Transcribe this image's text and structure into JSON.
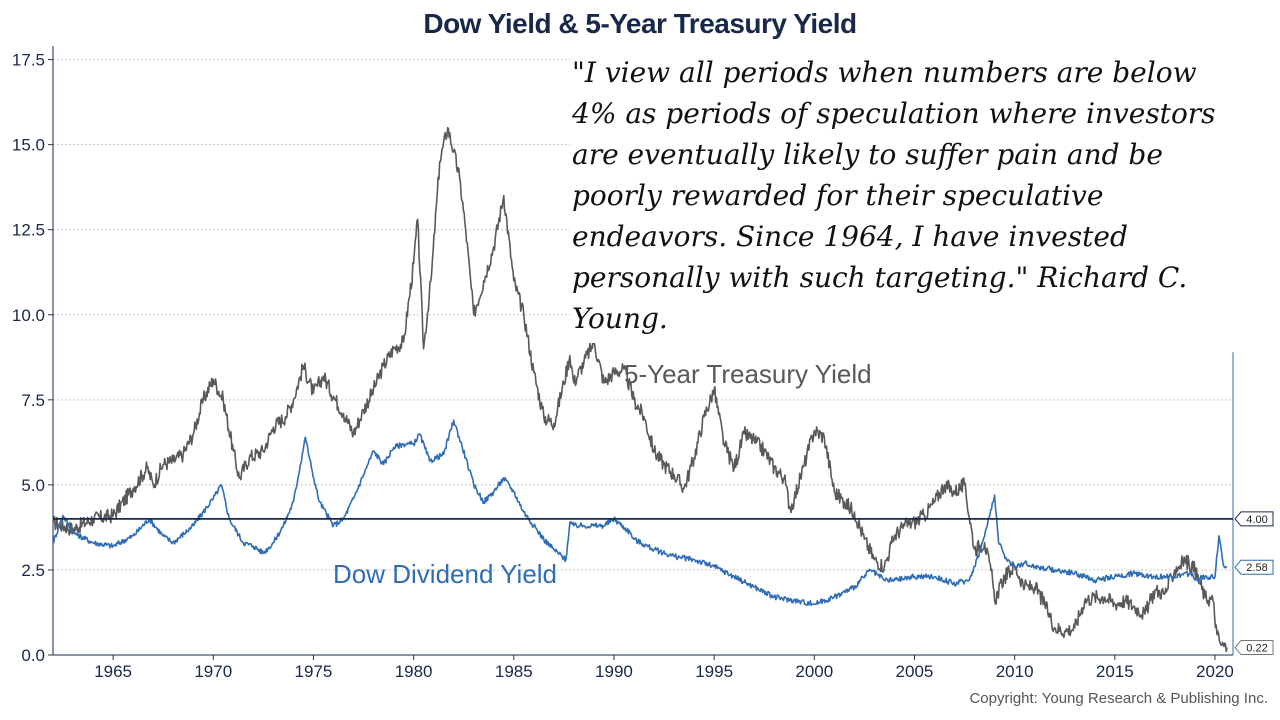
{
  "chart_data": {
    "type": "line",
    "title": "Dow Yield & 5-Year Treasury Yield",
    "xlabel": "",
    "ylabel": "",
    "xlim": [
      1962.0,
      2020.9
    ],
    "ylim": [
      0.0,
      17.9
    ],
    "grid": true,
    "x_ticks": [
      "1965",
      "1970",
      "1975",
      "1980",
      "1985",
      "1990",
      "1995",
      "2000",
      "2005",
      "2010",
      "2015",
      "2020"
    ],
    "y_ticks": [
      "0.0",
      "2.5",
      "5.0",
      "7.5",
      "10.0",
      "12.5",
      "15.0",
      "17.5"
    ],
    "reference_line": {
      "value": 4.0,
      "label": "4.00"
    },
    "series": [
      {
        "name": "5-Year Treasury Yield",
        "color": "#595959",
        "end_label": "0.22",
        "x": [
          1962.0,
          1963.0,
          1964.0,
          1965.0,
          1966.0,
          1966.7,
          1967.0,
          1967.5,
          1968.0,
          1968.5,
          1969.0,
          1969.5,
          1970.0,
          1970.5,
          1971.0,
          1971.3,
          1971.8,
          1972.5,
          1973.0,
          1973.6,
          1974.0,
          1974.5,
          1975.0,
          1975.5,
          1976.0,
          1976.5,
          1977.0,
          1977.5,
          1978.0,
          1978.5,
          1979.0,
          1979.5,
          1980.0,
          1980.2,
          1980.5,
          1980.9,
          1981.3,
          1981.7,
          1982.0,
          1982.3,
          1982.6,
          1983.0,
          1983.5,
          1984.0,
          1984.5,
          1985.0,
          1985.5,
          1986.0,
          1986.5,
          1987.0,
          1987.5,
          1987.8,
          1988.0,
          1988.5,
          1989.0,
          1989.5,
          1990.0,
          1990.5,
          1991.0,
          1991.5,
          1992.0,
          1992.5,
          1993.0,
          1993.5,
          1994.0,
          1994.5,
          1995.0,
          1995.5,
          1996.0,
          1996.5,
          1997.0,
          1997.5,
          1998.0,
          1998.5,
          1998.8,
          1999.0,
          1999.5,
          2000.0,
          2000.5,
          2001.0,
          2001.5,
          2002.0,
          2002.5,
          2003.0,
          2003.5,
          2004.0,
          2004.5,
          2005.0,
          2005.5,
          2006.0,
          2006.5,
          2007.0,
          2007.5,
          2008.0,
          2008.5,
          2008.9,
          2009.0,
          2009.5,
          2010.0,
          2010.5,
          2011.0,
          2011.5,
          2012.0,
          2012.5,
          2013.0,
          2013.5,
          2014.0,
          2014.5,
          2015.0,
          2015.5,
          2016.0,
          2016.5,
          2017.0,
          2017.5,
          2018.0,
          2018.5,
          2019.0,
          2019.5,
          2019.9,
          2020.1,
          2020.3,
          2020.6
        ],
        "y": [
          3.9,
          3.7,
          4.0,
          4.1,
          4.9,
          5.5,
          5.0,
          5.6,
          5.7,
          5.9,
          6.5,
          7.5,
          8.1,
          7.5,
          6.0,
          5.2,
          5.8,
          6.0,
          6.7,
          7.0,
          7.5,
          8.5,
          7.7,
          8.2,
          7.6,
          7.1,
          6.5,
          7.2,
          7.8,
          8.5,
          9.0,
          9.2,
          11.5,
          12.8,
          9.0,
          11.2,
          14.5,
          15.5,
          14.8,
          14.0,
          12.5,
          10.0,
          11.0,
          12.0,
          13.5,
          11.0,
          10.0,
          8.3,
          7.0,
          6.8,
          8.0,
          8.8,
          8.0,
          8.6,
          9.2,
          8.0,
          8.3,
          8.4,
          7.5,
          7.0,
          6.0,
          5.6,
          5.3,
          4.9,
          5.8,
          7.0,
          7.8,
          6.2,
          5.5,
          6.5,
          6.3,
          6.0,
          5.5,
          5.2,
          4.3,
          4.6,
          5.6,
          6.6,
          6.4,
          4.8,
          4.5,
          4.2,
          3.4,
          2.8,
          2.6,
          3.5,
          3.8,
          3.9,
          4.1,
          4.5,
          5.0,
          4.8,
          5.0,
          3.1,
          3.3,
          2.2,
          1.6,
          2.3,
          2.6,
          2.0,
          2.0,
          1.5,
          0.8,
          0.7,
          0.8,
          1.6,
          1.7,
          1.7,
          1.5,
          1.6,
          1.4,
          1.2,
          1.9,
          1.8,
          2.5,
          2.8,
          2.5,
          1.7,
          1.6,
          0.6,
          0.3,
          0.22
        ]
      },
      {
        "name": "Dow Dividend Yield",
        "color": "#2f6db5",
        "end_label": "2.58",
        "x": [
          1962.0,
          1962.5,
          1963.0,
          1964.0,
          1965.0,
          1966.0,
          1966.8,
          1967.5,
          1968.0,
          1969.0,
          1970.0,
          1970.4,
          1970.8,
          1971.5,
          1972.0,
          1972.5,
          1973.0,
          1973.5,
          1974.0,
          1974.6,
          1974.9,
          1975.3,
          1976.0,
          1976.5,
          1977.0,
          1977.5,
          1978.0,
          1978.5,
          1979.0,
          1979.5,
          1980.0,
          1980.3,
          1980.8,
          1981.5,
          1982.0,
          1982.6,
          1983.0,
          1983.5,
          1984.0,
          1984.5,
          1985.0,
          1985.5,
          1986.0,
          1986.5,
          1987.0,
          1987.6,
          1987.8,
          1988.0,
          1988.5,
          1989.0,
          1989.5,
          1990.0,
          1990.8,
          1991.0,
          1992.0,
          1993.0,
          1994.0,
          1995.0,
          1996.0,
          1997.0,
          1998.0,
          1999.0,
          2000.0,
          2001.0,
          2002.0,
          2002.8,
          2003.5,
          2004.0,
          2005.0,
          2006.0,
          2007.0,
          2007.7,
          2008.0,
          2008.5,
          2009.0,
          2009.2,
          2009.6,
          2010.0,
          2010.5,
          2011.0,
          2012.0,
          2013.0,
          2014.0,
          2015.0,
          2016.0,
          2017.0,
          2018.0,
          2018.8,
          2019.0,
          2019.5,
          2020.0,
          2020.2,
          2020.4,
          2020.6
        ],
        "y": [
          3.3,
          4.1,
          3.6,
          3.3,
          3.2,
          3.5,
          4.0,
          3.5,
          3.3,
          3.8,
          4.6,
          5.0,
          4.0,
          3.3,
          3.2,
          3.0,
          3.3,
          3.8,
          4.5,
          6.4,
          5.5,
          4.5,
          3.8,
          4.0,
          4.6,
          5.3,
          6.0,
          5.6,
          6.1,
          6.2,
          6.2,
          6.5,
          5.7,
          5.9,
          6.9,
          5.8,
          5.0,
          4.5,
          4.8,
          5.2,
          4.8,
          4.2,
          3.8,
          3.4,
          3.1,
          2.8,
          3.9,
          3.8,
          3.8,
          3.8,
          3.8,
          4.0,
          3.6,
          3.4,
          3.1,
          2.9,
          2.8,
          2.6,
          2.3,
          2.0,
          1.7,
          1.6,
          1.5,
          1.7,
          2.0,
          2.5,
          2.2,
          2.2,
          2.3,
          2.3,
          2.1,
          2.2,
          2.6,
          3.5,
          4.7,
          3.3,
          2.8,
          2.6,
          2.7,
          2.6,
          2.5,
          2.4,
          2.2,
          2.3,
          2.4,
          2.3,
          2.3,
          2.4,
          2.2,
          2.3,
          2.3,
          3.5,
          2.7,
          2.58
        ]
      }
    ]
  },
  "annotations": {
    "quote": "\"I view all periods when numbers are below 4% as periods of speculation where investors are eventually likely to suffer pain and be poorly rewarded for their speculative endeavors. Since 1964, I have invested personally with such targeting.\"    Richard C. Young.",
    "treasury_label": "5-Year Treasury Yield",
    "dividend_label": "Dow Dividend Yield",
    "copyright": "Copyright: Young Research & Publishing Inc."
  },
  "colors": {
    "title": "#17284a",
    "treasury": "#595959",
    "dividend": "#2f6db5",
    "reference": "#17284a",
    "grid": "#c8c8c8"
  }
}
